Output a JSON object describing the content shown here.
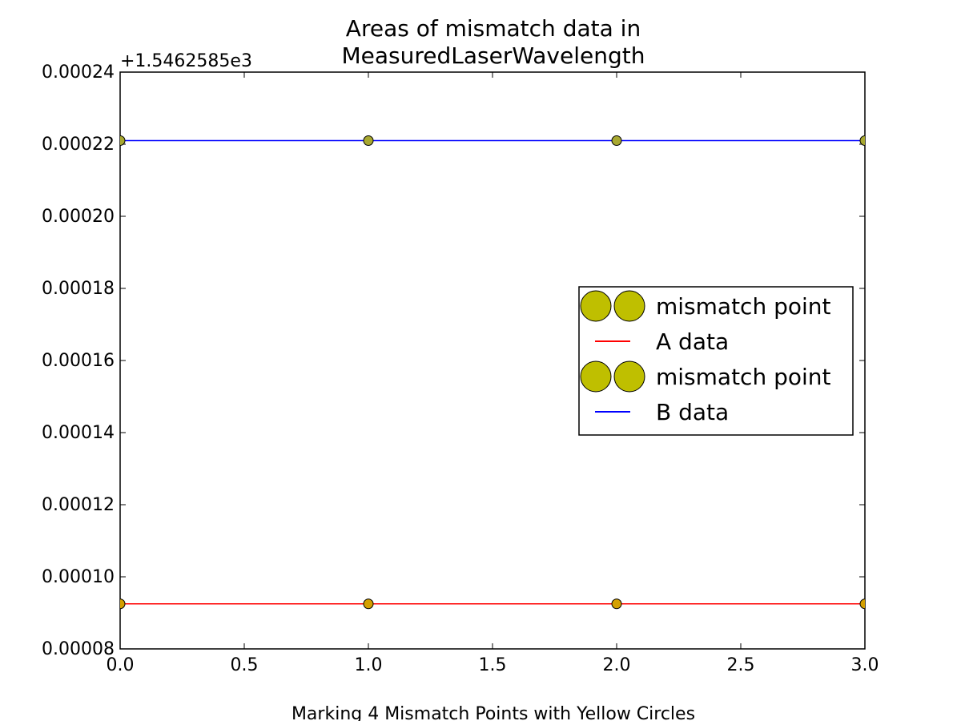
{
  "chart_data": {
    "type": "line",
    "title_line1": "Areas of mismatch data in",
    "title_line2": "MeasuredLaserWavelength",
    "xlabel": "Marking 4 Mismatch Points with Yellow Circles",
    "ylabel": "",
    "y_offset_label": "+1.5462585e3",
    "xlim": [
      0.0,
      3.0
    ],
    "ylim": [
      8e-05,
      0.00024
    ],
    "x_ticks": [
      "0.0",
      "0.5",
      "1.0",
      "1.5",
      "2.0",
      "2.5",
      "3.0"
    ],
    "y_ticks": [
      "0.00008",
      "0.00010",
      "0.00012",
      "0.00014",
      "0.00016",
      "0.00018",
      "0.00020",
      "0.00022",
      "0.00024"
    ],
    "x": [
      0,
      1,
      2,
      3
    ],
    "series": [
      {
        "name": "A data",
        "color": "#ff0000",
        "values": [
          9.25e-05,
          9.25e-05,
          9.25e-05,
          9.25e-05
        ]
      },
      {
        "name": "B data",
        "color": "#0000ff",
        "values": [
          0.000221,
          0.000221,
          0.000221,
          0.000221
        ]
      }
    ],
    "mismatch_points": [
      {
        "label": "mismatch point",
        "color": "#bfbf00",
        "x": [
          0,
          1,
          2,
          3
        ],
        "y": [
          9.25e-05,
          9.25e-05,
          9.25e-05,
          9.25e-05
        ]
      },
      {
        "label": "mismatch point",
        "color": "#bfbf00",
        "x": [
          0,
          1,
          2,
          3
        ],
        "y": [
          0.000221,
          0.000221,
          0.000221,
          0.000221
        ]
      }
    ],
    "legend": {
      "placement": "center-right",
      "entries": [
        {
          "label": "mismatch point",
          "kind": "marker"
        },
        {
          "label": "A data",
          "kind": "line",
          "color": "#ff0000"
        },
        {
          "label": "mismatch point",
          "kind": "marker"
        },
        {
          "label": "B data",
          "kind": "line",
          "color": "#0000ff"
        }
      ]
    },
    "grid": false
  }
}
